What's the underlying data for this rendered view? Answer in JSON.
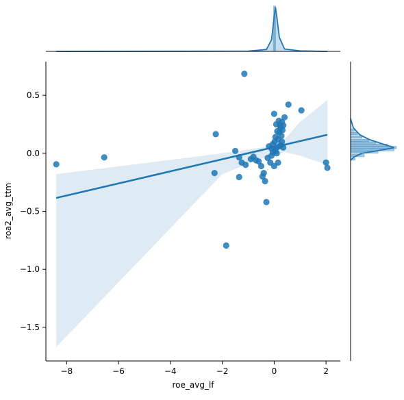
{
  "chart_data": {
    "type": "scatter",
    "kind": "jointplot with regression line",
    "title": "",
    "xlabel": "roe_avg_lf",
    "ylabel": "roa2_avg_ttm",
    "xlim": [
      -8.8,
      2.55
    ],
    "ylim": [
      -1.79,
      0.79
    ],
    "xticks": [
      -8,
      -6,
      -4,
      -2,
      0,
      2
    ],
    "yticks": [
      -1.5,
      -1.0,
      -0.5,
      0.0,
      0.5
    ],
    "ytick_labels": [
      "−1.5",
      "−1.0",
      "−0.5",
      "0.0",
      "0.5"
    ],
    "xtick_labels": [
      "−8",
      "−6",
      "−4",
      "−2",
      "0",
      "2"
    ],
    "color": "#1f77b4",
    "regression": {
      "x": [
        -8.4,
        2.05
      ],
      "y": [
        -0.385,
        0.16
      ],
      "ci_lower": [
        [
          -8.4,
          -1.67
        ],
        [
          -2.0,
          -0.18
        ],
        [
          -0.2,
          -0.02
        ],
        [
          0.4,
          0.01
        ],
        [
          1.0,
          -0.02
        ],
        [
          2.05,
          -0.1
        ]
      ],
      "ci_upper": [
        [
          -8.4,
          -0.18
        ],
        [
          -2.0,
          0.0
        ],
        [
          -0.2,
          0.06
        ],
        [
          0.4,
          0.12
        ],
        [
          1.0,
          0.27
        ],
        [
          2.05,
          0.46
        ]
      ]
    },
    "points": [
      [
        -8.4,
        -0.095
      ],
      [
        -6.55,
        -0.035
      ],
      [
        -2.25,
        0.165
      ],
      [
        -2.3,
        -0.17
      ],
      [
        -1.85,
        -0.795
      ],
      [
        -1.15,
        0.685
      ],
      [
        -1.5,
        0.02
      ],
      [
        -1.35,
        -0.035
      ],
      [
        -1.25,
        -0.08
      ],
      [
        -1.1,
        -0.1
      ],
      [
        -1.35,
        -0.205
      ],
      [
        -0.9,
        -0.05
      ],
      [
        -0.8,
        -0.03
      ],
      [
        -0.7,
        -0.06
      ],
      [
        -0.6,
        -0.07
      ],
      [
        -0.5,
        -0.11
      ],
      [
        -0.45,
        -0.2
      ],
      [
        -0.35,
        -0.24
      ],
      [
        -0.3,
        -0.42
      ],
      [
        -0.4,
        -0.17
      ],
      [
        -0.25,
        -0.04
      ],
      [
        -0.2,
        0.06
      ],
      [
        -0.15,
        -0.08
      ],
      [
        -0.1,
        -0.02
      ],
      [
        -0.05,
        0.01
      ],
      [
        0.0,
        0.34
      ],
      [
        0.05,
        0.02
      ],
      [
        0.1,
        0.05
      ],
      [
        0.15,
        0.12
      ],
      [
        0.2,
        0.18
      ],
      [
        0.25,
        0.22
      ],
      [
        0.3,
        0.27
      ],
      [
        0.35,
        0.24
      ],
      [
        0.4,
        0.31
      ],
      [
        0.15,
        -0.08
      ],
      [
        0.0,
        -0.11
      ],
      [
        0.1,
        0.0
      ],
      [
        0.2,
        0.06
      ],
      [
        0.3,
        0.1
      ],
      [
        -0.05,
        0.08
      ],
      [
        0.05,
        0.14
      ],
      [
        0.12,
        0.19
      ],
      [
        0.22,
        0.24
      ],
      [
        0.28,
        0.15
      ],
      [
        0.32,
        0.2
      ],
      [
        0.55,
        0.42
      ],
      [
        1.05,
        0.37
      ],
      [
        2.0,
        -0.08
      ],
      [
        2.05,
        -0.125
      ],
      [
        0.08,
        0.25
      ],
      [
        0.18,
        0.28
      ],
      [
        0.02,
        0.1
      ],
      [
        -0.1,
        0.04
      ],
      [
        0.25,
        0.07
      ],
      [
        0.35,
        0.05
      ]
    ],
    "x_marginal_density": [
      [
        -8.4,
        0.0
      ],
      [
        -1.0,
        0.005
      ],
      [
        -0.3,
        0.04
      ],
      [
        -0.1,
        0.25
      ],
      [
        0.0,
        0.75
      ],
      [
        0.05,
        0.95
      ],
      [
        0.1,
        0.75
      ],
      [
        0.2,
        0.3
      ],
      [
        0.4,
        0.05
      ],
      [
        1.0,
        0.01
      ],
      [
        2.05,
        0.0
      ]
    ],
    "y_marginal_density": [
      [
        -0.06,
        0.0
      ],
      [
        -0.03,
        0.08
      ],
      [
        0.0,
        0.25
      ],
      [
        0.03,
        0.7
      ],
      [
        0.05,
        0.95
      ],
      [
        0.08,
        0.7
      ],
      [
        0.12,
        0.4
      ],
      [
        0.16,
        0.2
      ],
      [
        0.22,
        0.06
      ],
      [
        0.3,
        0.0
      ]
    ],
    "y_marginal_bins": [
      [
        -0.05,
        0.1
      ],
      [
        -0.02,
        0.3
      ],
      [
        0.01,
        0.6
      ],
      [
        0.03,
        0.95
      ],
      [
        0.05,
        1.0
      ],
      [
        0.07,
        0.8
      ],
      [
        0.09,
        0.55
      ],
      [
        0.11,
        0.4
      ],
      [
        0.14,
        0.25
      ],
      [
        0.17,
        0.15
      ],
      [
        0.2,
        0.08
      ]
    ]
  }
}
